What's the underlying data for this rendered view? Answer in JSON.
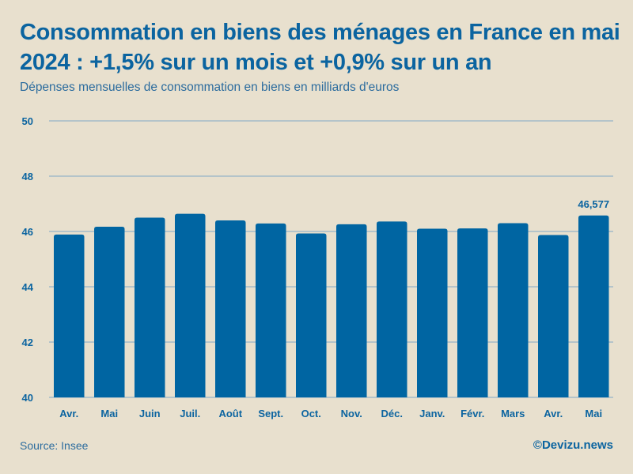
{
  "chart_data": {
    "type": "bar",
    "title": "Consommation en biens des ménages en France en mai 2024 : +1,5% sur un mois et +0,9% sur un an",
    "subtitle": "Dépenses mensuelles de consommation en biens en milliards d'euros",
    "xlabel": "",
    "ylabel": "",
    "categories": [
      "Avr.",
      "Mai",
      "Juin",
      "Juil.",
      "Août",
      "Sept.",
      "Oct.",
      "Nov.",
      "Déc.",
      "Janv.",
      "Févr.",
      "Mars",
      "Avr.",
      "Mai"
    ],
    "values": [
      45.89,
      46.17,
      46.5,
      46.64,
      46.4,
      46.29,
      45.93,
      46.26,
      46.36,
      46.1,
      46.11,
      46.3,
      45.87,
      46.577
    ],
    "ylim": [
      40,
      50
    ],
    "yticks": [
      40,
      42,
      44,
      46,
      48,
      50
    ],
    "grid": true,
    "data_labels": [
      {
        "index": 13,
        "text": "46,577"
      }
    ],
    "bar_color": "#0065a2",
    "grid_color": "#7fa9c6",
    "legend": "none"
  },
  "footer": {
    "source": "Source: Insee",
    "credit": "©Devizu.news"
  }
}
